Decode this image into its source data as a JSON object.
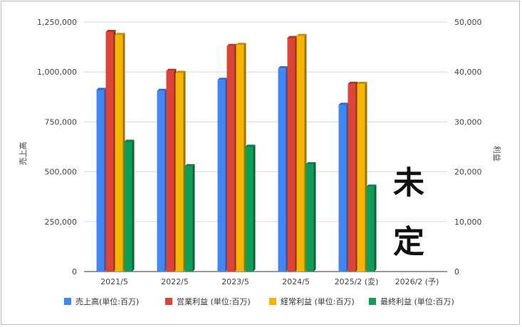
{
  "chart_data": {
    "type": "bar",
    "categories": [
      "2021/5",
      "2022/5",
      "2023/5",
      "2024/5",
      "2025/2 (変)",
      "2026/2 (予)"
    ],
    "series": [
      {
        "name": "売上高(単位:百万)",
        "axis": "left",
        "color": "#4285f4",
        "values": [
          910000,
          905000,
          960000,
          1018000,
          835000,
          null
        ]
      },
      {
        "name": "営業利益 (単位:百万)",
        "axis": "right",
        "color": "#db4437",
        "values": [
          48000,
          40200,
          45200,
          46800,
          37600,
          null
        ]
      },
      {
        "name": "経常利益 (単位:百万)",
        "axis": "right",
        "color": "#f4b400",
        "values": [
          47400,
          39800,
          45400,
          47200,
          37600,
          null
        ]
      },
      {
        "name": "最終利益 (単位:百万)",
        "axis": "right",
        "color": "#0f9d58",
        "values": [
          26000,
          21100,
          25000,
          21500,
          17000,
          null
        ]
      }
    ],
    "left_axis": {
      "title": "売上高",
      "min": 0,
      "max": 1250000,
      "ticks": [
        "0",
        "250,000",
        "500,000",
        "750,000",
        "1,000,000",
        "1,250,000"
      ]
    },
    "right_axis": {
      "title": "利益",
      "min": 0,
      "max": 50000,
      "ticks": [
        "0",
        "10,000",
        "20,000",
        "30,000",
        "40,000",
        "50,000"
      ]
    },
    "legend_position": "bottom",
    "grid": true,
    "annotation": {
      "line1": "未",
      "line2": "定"
    }
  }
}
